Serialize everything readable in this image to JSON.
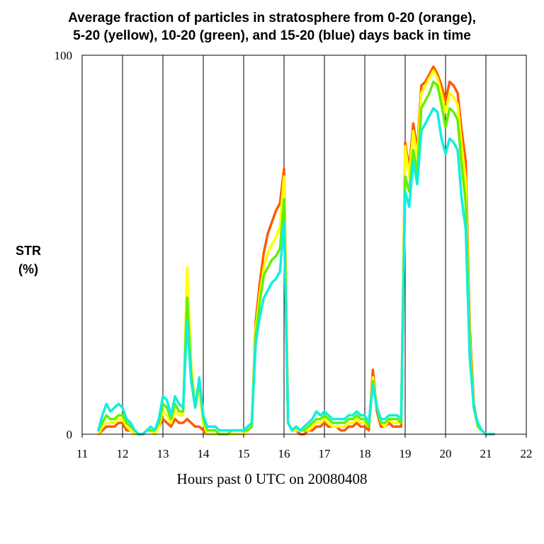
{
  "chart_data": {
    "type": "line",
    "title_lines": [
      "Average fraction of particles in stratosphere from 0-20 (orange),",
      "5-20 (yellow), 10-20 (green), and 15-20 (blue) days back in time"
    ],
    "ylabel_lines": [
      "STR",
      "(%)"
    ],
    "xlabel": "Hours past 0 UTC on 20080408",
    "xlim": [
      11,
      22
    ],
    "ylim": [
      0,
      100
    ],
    "x_ticks": [
      11,
      12,
      13,
      14,
      15,
      16,
      17,
      18,
      19,
      20,
      21,
      22
    ],
    "y_tick_labels": [
      {
        "value": 0,
        "label": "0"
      },
      {
        "value": 100,
        "label": "100"
      }
    ],
    "vertical_gridlines": [
      12,
      13,
      14,
      15,
      16,
      17,
      18,
      19,
      20,
      21
    ],
    "x": [
      11.4,
      11.5,
      11.6,
      11.7,
      11.8,
      11.9,
      12.0,
      12.1,
      12.2,
      12.3,
      12.4,
      12.5,
      12.6,
      12.7,
      12.8,
      12.9,
      13.0,
      13.1,
      13.2,
      13.3,
      13.4,
      13.5,
      13.6,
      13.7,
      13.8,
      13.9,
      14.0,
      14.1,
      14.2,
      14.3,
      14.4,
      14.5,
      14.6,
      14.7,
      14.8,
      14.9,
      15.0,
      15.1,
      15.2,
      15.3,
      15.4,
      15.5,
      15.6,
      15.7,
      15.8,
      15.9,
      16.0,
      16.1,
      16.2,
      16.3,
      16.4,
      16.5,
      16.6,
      16.7,
      16.8,
      16.9,
      17.0,
      17.1,
      17.2,
      17.3,
      17.4,
      17.5,
      17.6,
      17.7,
      17.8,
      17.9,
      18.0,
      18.1,
      18.2,
      18.3,
      18.4,
      18.5,
      18.6,
      18.7,
      18.8,
      18.9,
      19.0,
      19.1,
      19.2,
      19.3,
      19.4,
      19.5,
      19.6,
      19.7,
      19.8,
      19.9,
      20.0,
      20.1,
      20.2,
      20.3,
      20.4,
      20.5,
      20.6,
      20.7,
      20.8,
      20.9,
      21.0,
      21.1,
      21.2
    ],
    "series": [
      {
        "name": "0-20 days (orange)",
        "color": "#ff5a00",
        "values": [
          0,
          1,
          2,
          2,
          2,
          3,
          3,
          1,
          1,
          0,
          0,
          0,
          1,
          1,
          0,
          2,
          4,
          3,
          2,
          4,
          3,
          3,
          4,
          3,
          2,
          2,
          1,
          0,
          0,
          0,
          0,
          0,
          0,
          0,
          0,
          0,
          0,
          1,
          2,
          30,
          40,
          48,
          53,
          56,
          59,
          61,
          70,
          3,
          1,
          1,
          0,
          0,
          1,
          1,
          2,
          2,
          3,
          2,
          2,
          2,
          1,
          1,
          2,
          2,
          3,
          2,
          2,
          1,
          17,
          6,
          2,
          2,
          3,
          2,
          2,
          2,
          77,
          70,
          82,
          75,
          92,
          93,
          95,
          97,
          95,
          92,
          88,
          93,
          92,
          90,
          80,
          72,
          28,
          8,
          2,
          1,
          0,
          0,
          0
        ]
      },
      {
        "name": "5-20 days (yellow)",
        "color": "#ffff00",
        "values": [
          0,
          2,
          3,
          3,
          3,
          4,
          4,
          2,
          1,
          0,
          0,
          0,
          1,
          1,
          0,
          2,
          6,
          5,
          3,
          6,
          5,
          5,
          44,
          18,
          7,
          12,
          3,
          0,
          0,
          0,
          0,
          0,
          0,
          0,
          0,
          0,
          0,
          1,
          2,
          28,
          37,
          44,
          48,
          50,
          52,
          55,
          68,
          3,
          1,
          1,
          1,
          1,
          1,
          2,
          3,
          3,
          4,
          3,
          2,
          2,
          2,
          2,
          3,
          3,
          4,
          3,
          3,
          2,
          15,
          7,
          3,
          2,
          4,
          3,
          3,
          3,
          76,
          68,
          80,
          73,
          90,
          92,
          94,
          96,
          94,
          90,
          85,
          90,
          89,
          87,
          76,
          67,
          25,
          7,
          2,
          1,
          0,
          0,
          0
        ]
      },
      {
        "name": "10-20 days (green)",
        "color": "#66ee00",
        "values": [
          1,
          3,
          5,
          4,
          4,
          5,
          5,
          3,
          2,
          1,
          0,
          0,
          1,
          1,
          1,
          3,
          8,
          7,
          4,
          8,
          6,
          6,
          36,
          16,
          7,
          14,
          4,
          1,
          1,
          1,
          0,
          0,
          0,
          1,
          1,
          1,
          1,
          1,
          2,
          26,
          35,
          42,
          44,
          46,
          47,
          49,
          62,
          3,
          1,
          2,
          1,
          1,
          2,
          3,
          4,
          4,
          5,
          4,
          3,
          3,
          3,
          3,
          4,
          4,
          5,
          4,
          4,
          2,
          14,
          7,
          3,
          3,
          4,
          4,
          4,
          3,
          68,
          64,
          75,
          69,
          86,
          88,
          90,
          93,
          92,
          87,
          81,
          86,
          85,
          83,
          71,
          61,
          23,
          7,
          2,
          1,
          0,
          0,
          0
        ]
      },
      {
        "name": "15-20 days (blue)",
        "color": "#11eedd",
        "values": [
          1,
          5,
          8,
          6,
          7,
          8,
          7,
          4,
          3,
          1,
          0,
          0,
          1,
          2,
          1,
          4,
          10,
          9,
          5,
          10,
          8,
          7,
          30,
          14,
          7,
          15,
          5,
          2,
          2,
          2,
          1,
          1,
          1,
          1,
          1,
          1,
          1,
          2,
          3,
          24,
          31,
          36,
          38,
          40,
          41,
          43,
          56,
          3,
          1,
          2,
          1,
          2,
          3,
          4,
          6,
          5,
          6,
          5,
          4,
          4,
          4,
          4,
          5,
          5,
          6,
          5,
          5,
          3,
          13,
          7,
          4,
          4,
          5,
          5,
          5,
          4,
          64,
          60,
          72,
          66,
          80,
          82,
          84,
          86,
          85,
          78,
          74,
          78,
          77,
          75,
          62,
          54,
          20,
          7,
          3,
          1,
          0,
          0,
          0
        ]
      }
    ]
  }
}
